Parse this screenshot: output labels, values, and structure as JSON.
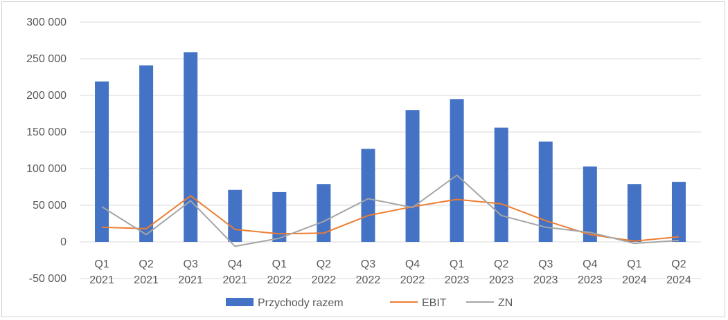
{
  "chart_data": {
    "type": "bar",
    "title": "",
    "xlabel": "",
    "ylabel": "",
    "ylim": [
      -50000,
      300000
    ],
    "yticks": [
      -50000,
      0,
      50000,
      100000,
      150000,
      200000,
      250000,
      300000
    ],
    "ytick_labels": [
      "-50 000",
      "0",
      "50 000",
      "100 000",
      "150 000",
      "200 000",
      "250 000",
      "300 000"
    ],
    "grid": true,
    "legend_position": "bottom",
    "categories": [
      [
        "Q1",
        "2021"
      ],
      [
        "Q2",
        "2021"
      ],
      [
        "Q3",
        "2021"
      ],
      [
        "Q4",
        "2021"
      ],
      [
        "Q1",
        "2022"
      ],
      [
        "Q2",
        "2022"
      ],
      [
        "Q3",
        "2022"
      ],
      [
        "Q4",
        "2022"
      ],
      [
        "Q1",
        "2023"
      ],
      [
        "Q2",
        "2023"
      ],
      [
        "Q3",
        "2023"
      ],
      [
        "Q4",
        "2023"
      ],
      [
        "Q1",
        "2024"
      ],
      [
        "Q2",
        "2024"
      ]
    ],
    "series": [
      {
        "name": "Przychody razem",
        "kind": "bar",
        "color": "#4472C4",
        "values": [
          219000,
          241000,
          259000,
          71000,
          68000,
          79000,
          127000,
          180000,
          195000,
          156000,
          137000,
          103000,
          79000,
          82000
        ]
      },
      {
        "name": "EBIT",
        "kind": "line",
        "color": "#ED7D31",
        "values": [
          20000,
          18000,
          63000,
          17000,
          11000,
          12000,
          36000,
          48000,
          58000,
          52000,
          29000,
          10000,
          1000,
          7000
        ]
      },
      {
        "name": "ZN",
        "kind": "line",
        "color": "#A5A5A5",
        "values": [
          48000,
          10000,
          56000,
          -6000,
          5000,
          28000,
          59000,
          47000,
          91000,
          36000,
          20000,
          13000,
          -2000,
          2000
        ]
      }
    ]
  }
}
